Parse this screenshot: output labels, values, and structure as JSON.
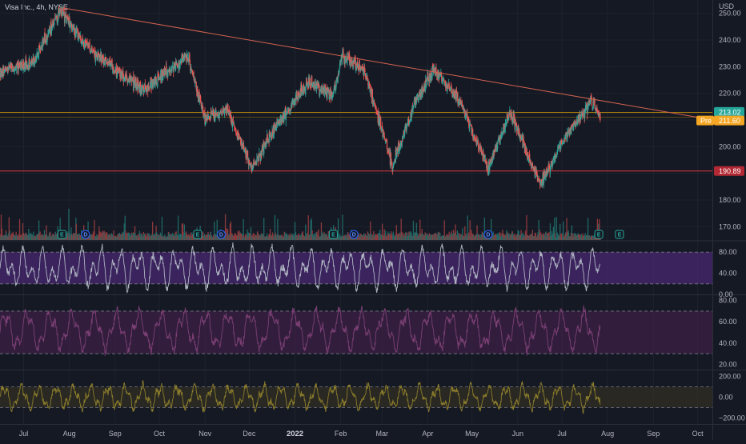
{
  "title": "Visa Inc., 4h, NYSE",
  "currency": "USD",
  "colors": {
    "background": "#151924",
    "grid": "#1e222d",
    "up": "#26a69a",
    "down": "#ef5350",
    "trendline": "#d4634f",
    "support": "#e0383e",
    "price_line": "#b8860b",
    "pre_market": "#f5a623",
    "last_price": "#26a69a",
    "stoch_band": "#5b2d8e",
    "rsi_band": "#4a2350",
    "cci_band": "#3a3520",
    "stoch_k": "#aeb3c1",
    "rsi_line": "#7b3f74",
    "cci_line": "#8b7d2c"
  },
  "chart_data": [
    {
      "type": "candlestick",
      "name": "price",
      "ylim": [
        165,
        255
      ],
      "y_ticks": [
        170,
        180,
        190,
        200,
        210,
        220,
        230,
        240,
        250
      ],
      "y_tick_labels": [
        "170.00",
        "180.00",
        "190.00",
        "200.00",
        "210.00",
        "220.00",
        "230.00",
        "240.00",
        "250.00"
      ],
      "x_labels": [
        "Jul",
        "Aug",
        "Sep",
        "Oct",
        "Nov",
        "Dec",
        "2022",
        "Feb",
        "Mar",
        "Apr",
        "May",
        "Jun",
        "Jul",
        "Aug",
        "Sep",
        "Oct"
      ],
      "bold_x_label": "2022",
      "path_dates": [
        "2021-06-15",
        "2021-07-07",
        "2021-07-26",
        "2021-08-12",
        "2021-09-01",
        "2021-09-20",
        "2021-10-06",
        "2021-10-20",
        "2021-11-01",
        "2021-11-16",
        "2021-12-03",
        "2021-12-22",
        "2022-01-10",
        "2022-01-27",
        "2022-02-02",
        "2022-02-17",
        "2022-03-08",
        "2022-03-24",
        "2022-04-05",
        "2022-04-22",
        "2022-05-12",
        "2022-05-27",
        "2022-06-16",
        "2022-07-05",
        "2022-07-21",
        "2022-07-27"
      ],
      "path_prices": [
        228,
        231,
        251,
        238,
        229,
        221,
        228,
        234,
        211,
        214,
        192,
        210,
        224,
        220,
        234,
        229,
        193,
        217,
        229,
        218,
        192,
        213,
        186,
        205,
        217,
        211
      ],
      "last_date": "2022-07-27",
      "trendline": {
        "start_date": "2021-07-28",
        "start_price": 252,
        "end_date": "2022-10-01",
        "end_price": 211
      },
      "support": {
        "price": 190.89,
        "label": "190.89"
      },
      "price_line": 212.8,
      "last_price": {
        "price": 213.02,
        "label": "213.02"
      },
      "pre_market": {
        "price": 211.6,
        "label": "211.60",
        "tag": "Pre"
      },
      "events": [
        {
          "date": "2021-07-27",
          "kind": "E"
        },
        {
          "date": "2021-08-12",
          "kind": "D"
        },
        {
          "date": "2021-10-27",
          "kind": "E"
        },
        {
          "date": "2021-11-12",
          "kind": "D"
        },
        {
          "date": "2022-01-27",
          "kind": "E"
        },
        {
          "date": "2022-02-10",
          "kind": "D"
        },
        {
          "date": "2022-05-12",
          "kind": "D"
        },
        {
          "date": "2022-07-26",
          "kind": "E"
        },
        {
          "date": "2022-08-09",
          "kind": "E"
        }
      ]
    },
    {
      "type": "line",
      "name": "stochastic",
      "ylim": [
        0,
        100
      ],
      "y_ticks": [
        80,
        40,
        0
      ],
      "y_tick_labels": [
        "80.00",
        "40.00",
        "0.00"
      ],
      "band": [
        20,
        80
      ]
    },
    {
      "type": "line",
      "name": "rsi",
      "ylim": [
        15,
        85
      ],
      "y_ticks": [
        80,
        60,
        40,
        20
      ],
      "y_tick_labels": [
        "80.00",
        "60.00",
        "40.00",
        "20.00"
      ],
      "band": [
        30,
        70
      ]
    },
    {
      "type": "line",
      "name": "cci",
      "ylim": [
        -260,
        260
      ],
      "y_ticks": [
        200,
        0,
        -200
      ],
      "y_tick_labels": [
        "200.00",
        "0.00",
        "−200.00"
      ],
      "band": [
        -100,
        100
      ]
    }
  ]
}
